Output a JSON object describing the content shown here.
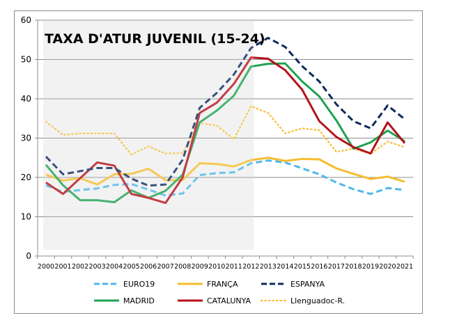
{
  "chart_data": {
    "type": "line",
    "title": "TAXA D'ATUR JUVENIL (15-24)",
    "xlabel": "",
    "ylabel": "",
    "ylim": [
      0,
      60
    ],
    "yticks": [
      "0",
      "10",
      "20",
      "30",
      "40",
      "50",
      "60"
    ],
    "grid": true,
    "legend_position": "bottom",
    "shaded_range": [
      "2000",
      "2012"
    ],
    "categories": [
      "2000",
      "2001",
      "2002",
      "2003",
      "2004",
      "2005",
      "2006",
      "2007",
      "2008",
      "2009",
      "2010",
      "2011",
      "2012",
      "2013",
      "2014",
      "2015",
      "2016",
      "2017",
      "2018",
      "2019",
      "2020",
      "2021"
    ],
    "series": [
      {
        "name": "EURO19",
        "color": "#4db8e8",
        "style": "dashed",
        "values": [
          18.0,
          16.3,
          16.8,
          17.2,
          18.1,
          18.3,
          16.9,
          15.4,
          15.9,
          20.6,
          21.1,
          21.3,
          23.6,
          24.3,
          23.8,
          22.3,
          20.8,
          18.7,
          17.0,
          15.8,
          17.3,
          16.8
        ]
      },
      {
        "name": "FRANÇA",
        "color": "#f5bd2f",
        "style": "solid",
        "values": [
          20.7,
          19.2,
          19.8,
          18.2,
          20.8,
          20.9,
          22.2,
          19.3,
          19.3,
          23.6,
          23.4,
          22.8,
          24.4,
          25.0,
          24.2,
          24.7,
          24.6,
          22.3,
          20.9,
          19.6,
          20.2,
          18.9
        ]
      },
      {
        "name": "ESPANYA",
        "color": "#0e2a5c",
        "style": "dashed",
        "values": [
          25.3,
          20.8,
          21.6,
          22.4,
          22.4,
          19.7,
          17.9,
          18.2,
          24.5,
          37.7,
          41.5,
          46.2,
          52.9,
          55.5,
          53.2,
          48.3,
          44.4,
          38.6,
          34.3,
          32.5,
          38.3,
          34.8
        ]
      },
      {
        "name": "MADRID",
        "color": "#1fa251",
        "style": "solid",
        "values": [
          23.2,
          18.0,
          14.2,
          14.2,
          13.7,
          16.7,
          14.8,
          16.6,
          20.7,
          34.0,
          37.0,
          40.8,
          48.2,
          48.9,
          49.0,
          44.4,
          40.6,
          34.5,
          27.3,
          28.9,
          31.9,
          29.2
        ]
      },
      {
        "name": "CATALUNYA",
        "color": "#b5121b",
        "style": "solid",
        "values": [
          18.7,
          15.8,
          19.8,
          23.8,
          23.0,
          15.8,
          14.8,
          13.5,
          20.0,
          36.4,
          39.0,
          43.8,
          50.5,
          50.2,
          47.3,
          42.3,
          34.3,
          30.3,
          27.7,
          26.1,
          34.0,
          28.7
        ]
      },
      {
        "name": "Llenguadoc-R.",
        "color": "#f5bd2f",
        "style": "dotted",
        "values": [
          34.2,
          30.8,
          31.2,
          31.2,
          31.2,
          25.8,
          27.9,
          26.1,
          26.2,
          33.8,
          33.2,
          29.7,
          38.1,
          36.4,
          31.2,
          32.5,
          32.0,
          26.5,
          27.3,
          26.0,
          29.1,
          27.7
        ]
      }
    ]
  }
}
